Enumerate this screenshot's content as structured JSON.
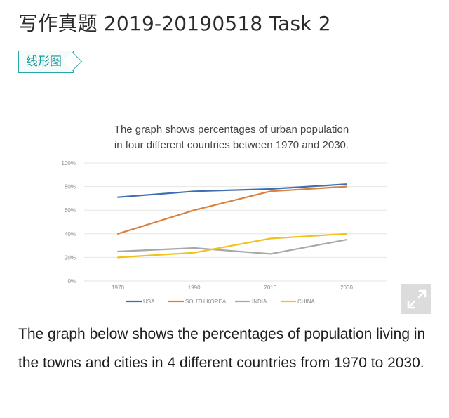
{
  "page": {
    "title": "写作真题 2019-20190518 Task 2",
    "tag": "线形图",
    "body_text": "The graph below shows the percentages of population living in the towns and cities in 4 different countries from 1970 to 2030."
  },
  "chart_data": {
    "type": "line",
    "title_line1": "The graph shows percentages of urban population",
    "title_line2": "in four different countries between 1970 and 2030.",
    "x": [
      "1970",
      "1990",
      "2010",
      "2030"
    ],
    "ylim": [
      0,
      100
    ],
    "yticks": [
      "0%",
      "20%",
      "40%",
      "60%",
      "80%",
      "100%"
    ],
    "ytick_values": [
      0,
      20,
      40,
      60,
      80,
      100
    ],
    "grid": true,
    "legend_position": "bottom",
    "series": [
      {
        "name": "USA",
        "color": "#3f6fae",
        "values": [
          71,
          76,
          78,
          82
        ]
      },
      {
        "name": "SOUTH KOREA",
        "color": "#d9813f",
        "values": [
          40,
          60,
          76,
          80
        ]
      },
      {
        "name": "INDIA",
        "color": "#a8a8a8",
        "values": [
          25,
          28,
          23,
          35
        ]
      },
      {
        "name": "CHINA",
        "color": "#f2c21b",
        "values": [
          20,
          24,
          36,
          40
        ]
      }
    ]
  },
  "icons": {
    "expand": "expand-icon"
  }
}
